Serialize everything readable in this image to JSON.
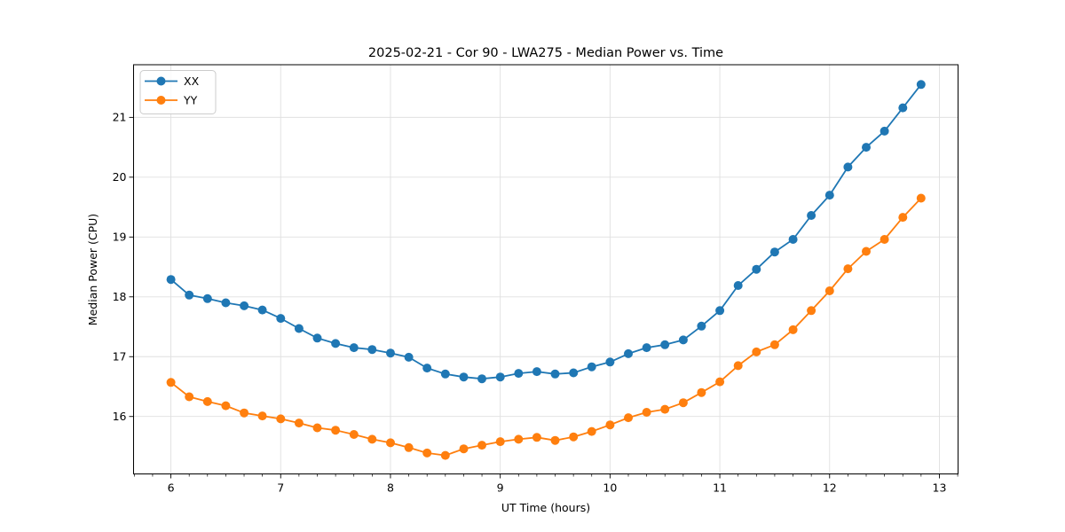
{
  "window": {
    "background": "#ffffff"
  },
  "chart_data": {
    "type": "line",
    "title": "2025-02-21 - Cor 90 - LWA275 - Median Power vs. Time",
    "xlabel": "UT Time (hours)",
    "ylabel": "Median Power (CPU)",
    "x": [
      6,
      6.167,
      6.333,
      6.5,
      6.667,
      6.833,
      7,
      7.167,
      7.333,
      7.5,
      7.667,
      7.833,
      8,
      8.167,
      8.333,
      8.5,
      8.667,
      8.833,
      9,
      9.167,
      9.333,
      9.5,
      9.667,
      9.833,
      10,
      10.167,
      10.333,
      10.5,
      10.667,
      10.833,
      11,
      11.167,
      11.333,
      11.5,
      11.667,
      11.833,
      12,
      12.167,
      12.333,
      12.5,
      12.667,
      12.833
    ],
    "series": [
      {
        "name": "XX",
        "color": "#1f77b4",
        "values": [
          18.29,
          18.03,
          17.97,
          17.9,
          17.85,
          17.78,
          17.64,
          17.47,
          17.31,
          17.22,
          17.15,
          17.12,
          17.06,
          16.99,
          16.81,
          16.71,
          16.66,
          16.63,
          16.66,
          16.72,
          16.75,
          16.71,
          16.73,
          16.83,
          16.91,
          17.05,
          17.15,
          17.2,
          17.28,
          17.51,
          17.77,
          18.19,
          18.46,
          18.75,
          18.96,
          19.36,
          19.7,
          20.17,
          20.5,
          20.77,
          21.16,
          21.55
        ]
      },
      {
        "name": "YY",
        "color": "#ff7f0e",
        "values": [
          16.57,
          16.33,
          16.25,
          16.18,
          16.06,
          16.01,
          15.96,
          15.89,
          15.81,
          15.77,
          15.7,
          15.62,
          15.56,
          15.48,
          15.39,
          15.35,
          15.46,
          15.52,
          15.58,
          15.62,
          15.65,
          15.6,
          15.66,
          15.75,
          15.86,
          15.98,
          16.07,
          16.12,
          16.23,
          16.4,
          16.58,
          16.85,
          17.08,
          17.2,
          17.45,
          17.77,
          18.1,
          18.47,
          18.76,
          18.96,
          19.33,
          19.65
        ]
      }
    ],
    "xlim": [
      5.66,
      13.17
    ],
    "ylim": [
      15.04,
      21.88
    ],
    "xticks": [
      6,
      7,
      8,
      9,
      10,
      11,
      12,
      13
    ],
    "yticks": [
      16,
      17,
      18,
      19,
      20,
      21
    ],
    "x_minor_tick_step": 0.1667,
    "grid": true,
    "legend_position": "upper left",
    "marker": "o"
  },
  "style": {
    "grid_color": "#e0e0e0",
    "spine_color": "#000000",
    "tick_color": "#000000",
    "legend_border_color": "#cccccc",
    "legend_background": "#ffffff"
  }
}
